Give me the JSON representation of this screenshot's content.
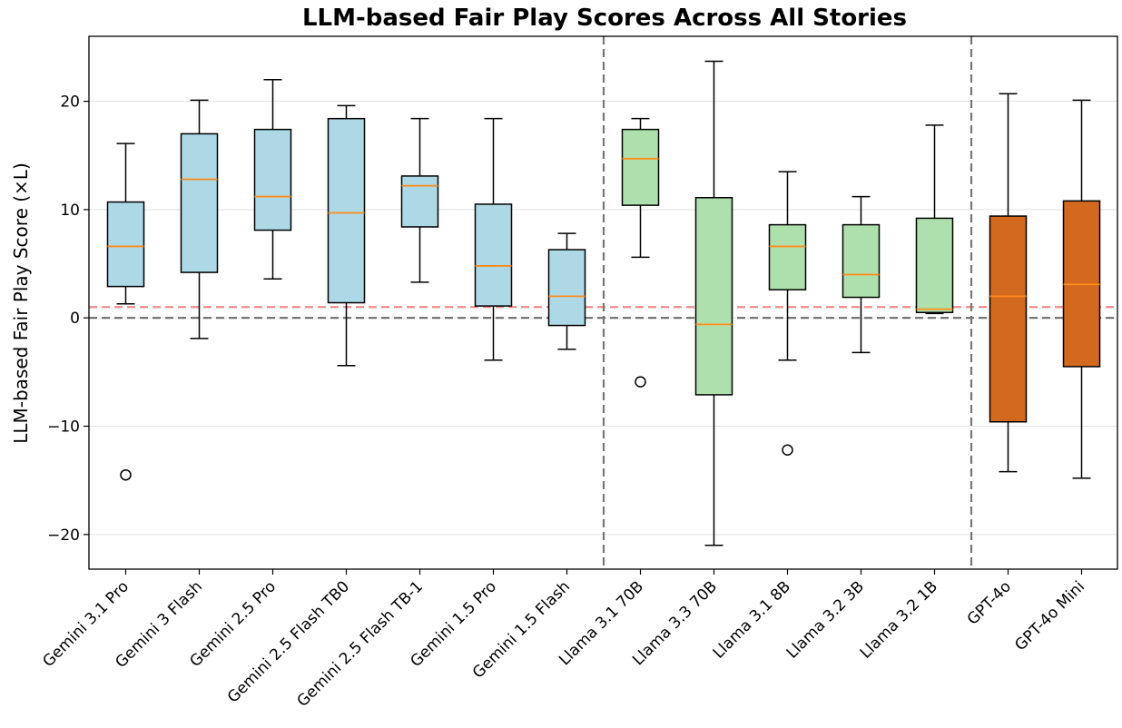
{
  "chart_data": {
    "type": "box",
    "title": "LLM-based Fair Play Scores Across All Stories",
    "xlabel": "",
    "ylabel": "LLM-based Fair Play Score (×L)",
    "ylim": [
      -23.2,
      26
    ],
    "yticks": [
      -20,
      -10,
      0,
      10,
      20
    ],
    "ytick_labels": [
      "−20",
      "−10",
      "0",
      "10",
      "20"
    ],
    "grid": "horizontal",
    "reference_lines": [
      {
        "y": 0,
        "style": "dashed",
        "color": "#555555"
      },
      {
        "y": 1,
        "style": "dashed",
        "color": "#f08080"
      }
    ],
    "group_separators_after_index": [
      6,
      11
    ],
    "colors": {
      "gemini": "#add8e6",
      "llama": "#aee0ae",
      "gpt": "#d2691e",
      "median": "#ff8c1a"
    },
    "boxes": [
      {
        "name": "Gemini 3.1 Pro",
        "group": "gemini",
        "whisker_low": 1.3,
        "q1": 2.9,
        "median": 6.6,
        "q3": 10.7,
        "whisker_high": 16.1,
        "outliers": [
          -14.5
        ]
      },
      {
        "name": "Gemini 3 Flash",
        "group": "gemini",
        "whisker_low": -1.9,
        "q1": 4.2,
        "median": 12.8,
        "q3": 17.0,
        "whisker_high": 20.1,
        "outliers": []
      },
      {
        "name": "Gemini 2.5 Pro",
        "group": "gemini",
        "whisker_low": 3.6,
        "q1": 8.1,
        "median": 11.2,
        "q3": 17.4,
        "whisker_high": 22.0,
        "outliers": []
      },
      {
        "name": "Gemini 2.5 Flash TB0",
        "group": "gemini",
        "whisker_low": -4.4,
        "q1": 1.4,
        "median": 9.7,
        "q3": 18.4,
        "whisker_high": 19.6,
        "outliers": []
      },
      {
        "name": "Gemini 2.5 Flash TB-1",
        "group": "gemini",
        "whisker_low": 3.3,
        "q1": 8.4,
        "median": 12.2,
        "q3": 13.1,
        "whisker_high": 18.4,
        "outliers": []
      },
      {
        "name": "Gemini 1.5 Pro",
        "group": "gemini",
        "whisker_low": -3.9,
        "q1": 1.1,
        "median": 4.8,
        "q3": 10.5,
        "whisker_high": 18.4,
        "outliers": []
      },
      {
        "name": "Gemini 1.5 Flash",
        "group": "gemini",
        "whisker_low": -2.9,
        "q1": -0.7,
        "median": 2.0,
        "q3": 6.3,
        "whisker_high": 7.8,
        "outliers": []
      },
      {
        "name": "Llama 3.1 70B",
        "group": "llama",
        "whisker_low": 5.6,
        "q1": 10.4,
        "median": 14.7,
        "q3": 17.4,
        "whisker_high": 18.4,
        "outliers": [
          -5.9
        ]
      },
      {
        "name": "Llama 3.3 70B",
        "group": "llama",
        "whisker_low": -21.0,
        "q1": -7.1,
        "median": -0.6,
        "q3": 11.1,
        "whisker_high": 23.7,
        "outliers": []
      },
      {
        "name": "Llama 3.1 8B",
        "group": "llama",
        "whisker_low": -3.9,
        "q1": 2.6,
        "median": 6.6,
        "q3": 8.6,
        "whisker_high": 13.5,
        "outliers": [
          -12.2
        ]
      },
      {
        "name": "Llama 3.2 3B",
        "group": "llama",
        "whisker_low": -3.2,
        "q1": 1.9,
        "median": 4.0,
        "q3": 8.6,
        "whisker_high": 11.2,
        "outliers": []
      },
      {
        "name": "Llama 3.2 1B",
        "group": "llama",
        "whisker_low": 0.4,
        "q1": 0.5,
        "median": 0.8,
        "q3": 9.2,
        "whisker_high": 17.8,
        "outliers": []
      },
      {
        "name": "GPT-4o",
        "group": "gpt",
        "whisker_low": -14.2,
        "q1": -9.6,
        "median": 2.0,
        "q3": 9.4,
        "whisker_high": 20.7,
        "outliers": []
      },
      {
        "name": "GPT-4o Mini",
        "group": "gpt",
        "whisker_low": -14.8,
        "q1": -4.5,
        "median": 3.1,
        "q3": 10.8,
        "whisker_high": 20.1,
        "outliers": []
      }
    ]
  }
}
